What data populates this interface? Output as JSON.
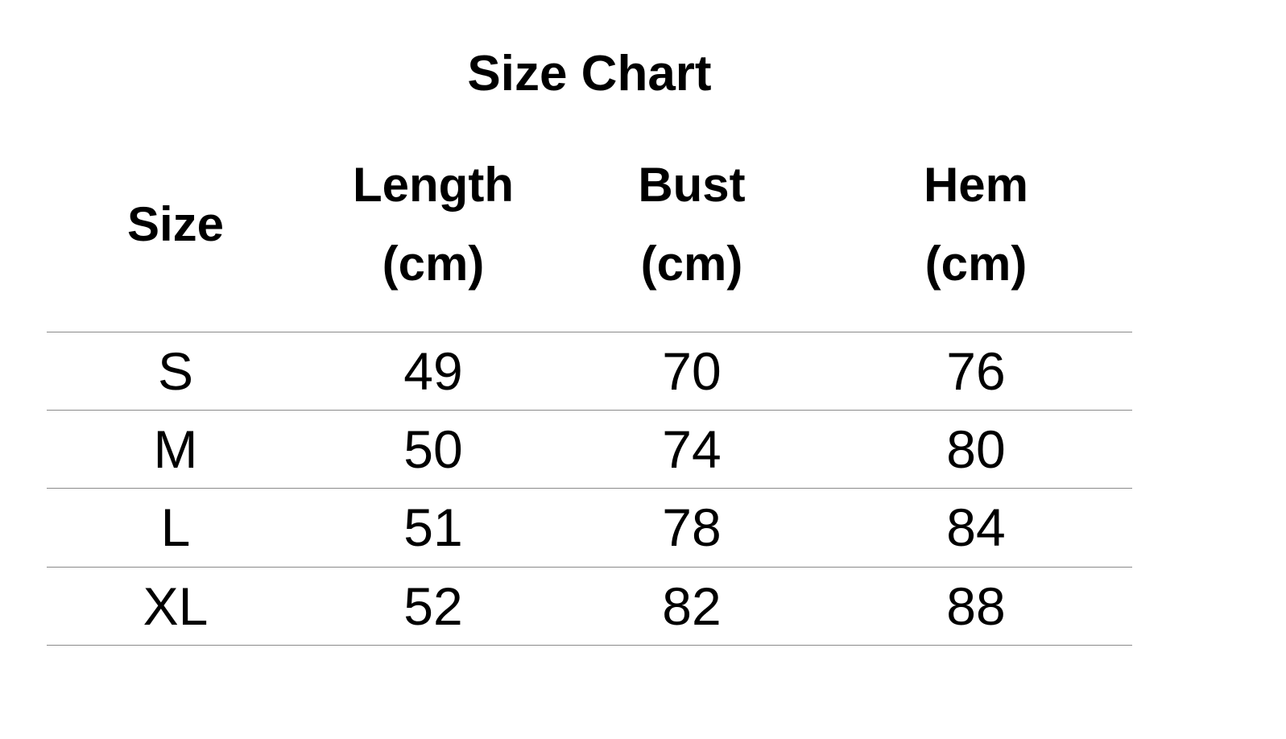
{
  "title": "Size Chart",
  "table": {
    "headers": [
      {
        "line1": "Size",
        "line2": ""
      },
      {
        "line1": "Length",
        "line2": "(cm)"
      },
      {
        "line1": "Bust",
        "line2": "(cm)"
      },
      {
        "line1": "Hem",
        "line2": "(cm)"
      }
    ],
    "rows": [
      [
        "S",
        "49",
        "70",
        "76"
      ],
      [
        "M",
        "50",
        "74",
        "80"
      ],
      [
        "L",
        "51",
        "78",
        "84"
      ],
      [
        "XL",
        "52",
        "82",
        "88"
      ]
    ]
  },
  "colors": {
    "text": "#000000",
    "rule": "#8a8a8a",
    "background": "#ffffff"
  }
}
